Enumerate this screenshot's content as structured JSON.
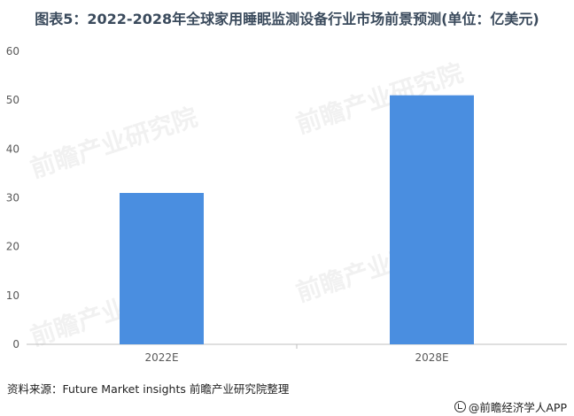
{
  "title": "图表5：2022-2028年全球家用睡眠监测设备行业市场前景预测(单位：亿美元)",
  "source": "资料来源：Future Market insights 前瞻产业研究院整理",
  "brand": "@前瞻经济学人APP",
  "watermark_text": "前瞻产业研究院",
  "colors": {
    "bar": "#4a8ee0",
    "axis": "#bfbfbf",
    "tick": "#595959"
  },
  "chart_data": {
    "type": "bar",
    "categories": [
      "2022E",
      "2028E"
    ],
    "values": [
      31,
      51
    ],
    "ylim": [
      0,
      60
    ],
    "yticks": [
      0,
      10,
      20,
      30,
      40,
      50,
      60
    ],
    "xlabel": "",
    "ylabel": "",
    "grid": false
  }
}
